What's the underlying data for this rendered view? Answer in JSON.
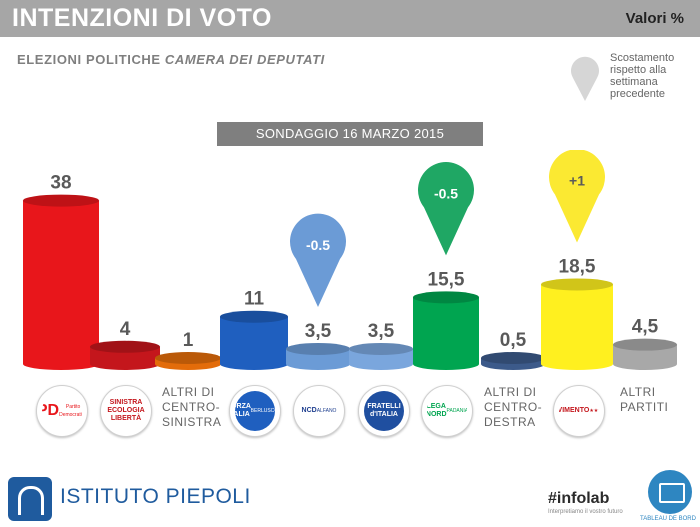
{
  "header": {
    "title": "INTENZIONI DI VOTO",
    "units": "Valori %"
  },
  "subtitle": {
    "prefix": "ELEZIONI POLITICHE ",
    "emphasis": "CAMERA DEI DEPUTATI"
  },
  "shift_legend": {
    "text": "Scostamento rispetto alla settimana precedente"
  },
  "survey": {
    "label": "SONDAGGIO 16 MARZO 2015"
  },
  "chart_data": {
    "type": "bar",
    "title": "INTENZIONI DI VOTO",
    "xlabel": "",
    "ylabel": "",
    "units": "%",
    "categories": [
      "Partito Democratico",
      "Sinistra Ecologia Libertà",
      "ALTRI DI CENTRO-SINISTRA",
      "Forza Italia",
      "NCD Alfano",
      "Fratelli d'Italia",
      "Lega Nord",
      "ALTRI DI CENTRO-DESTRA",
      "Movimento 5 Stelle",
      "ALTRI PARTITI"
    ],
    "values": [
      38,
      4,
      1,
      11,
      3.5,
      3.5,
      15.5,
      0.5,
      18.5,
      4.5
    ],
    "value_labels": [
      "38",
      "4",
      "1",
      "11",
      "3,5",
      "3,5",
      "15,5",
      "0,5",
      "18,5",
      "4,5"
    ],
    "colors": [
      "#e8161b",
      "#c4161c",
      "#e36c0a",
      "#1f5fbf",
      "#6b9bd6",
      "#7aa6dd",
      "#00a550",
      "#3c5a8a",
      "#fff01f",
      "#a8a8a8"
    ],
    "shifts": [
      {
        "category": "NCD Alfano",
        "label": "-0.5",
        "color": "#6b9bd6"
      },
      {
        "category": "Lega Nord",
        "label": "-0.5",
        "color": "#1fa764"
      },
      {
        "category": "Movimento 5 Stelle",
        "label": "+1",
        "color": "#fbe932"
      }
    ]
  },
  "logos": [
    {
      "name": "pd",
      "text": "PD",
      "sub": "Partito Democratico",
      "bg": "#ffffff",
      "fg": "#e8161b"
    },
    {
      "name": "sel",
      "text": "SINISTRA ECOLOGIA LIBERTÀ",
      "bg": "#ffffff",
      "fg": "#c4161c"
    },
    {
      "name": "fi",
      "text": "FORZA ITALIA",
      "sub": "BERLUSCONI",
      "bg": "#1f5fbf",
      "fg": "#ffffff"
    },
    {
      "name": "ncd",
      "text": "NCD",
      "sub": "ALFANO",
      "bg": "#ffffff",
      "fg": "#1f3f8f"
    },
    {
      "name": "fdi",
      "text": "FRATELLI d'ITALIA",
      "bg": "#1f4fa0",
      "fg": "#ffffff"
    },
    {
      "name": "lega",
      "text": "LEGA NORD",
      "sub": "PADANIA",
      "bg": "#ffffff",
      "fg": "#00a550"
    },
    {
      "name": "m5s",
      "text": "MOVIMENTO",
      "sub": "★★★★★",
      "bg": "#ffffff",
      "fg": "#c4161c"
    }
  ],
  "other_labels": {
    "centro_sinistra": [
      "ALTRI DI",
      "CENTRO-",
      "SINISTRA"
    ],
    "centro_destra": [
      "ALTRI DI",
      "CENTRO-",
      "DESTRA"
    ],
    "altri": [
      "ALTRI",
      "PARTITI"
    ]
  },
  "footer": {
    "org": "ISTITUTO PIEPOLI",
    "tag": "#infolab",
    "tag_sub": "Interpretiamo il vostro futuro",
    "book_label": "TABLEAU DE BORD"
  }
}
